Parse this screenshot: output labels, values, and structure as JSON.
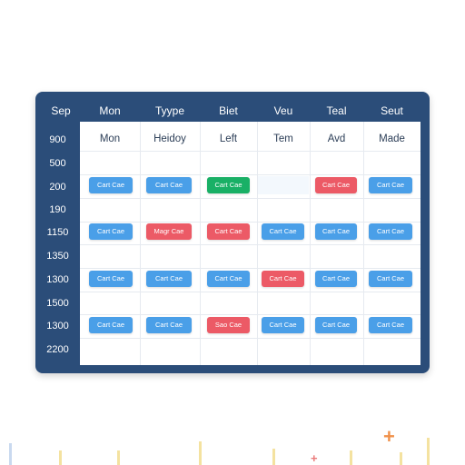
{
  "header": {
    "corner": "Sep",
    "days": [
      "Mon",
      "Tyype",
      "Biet",
      "Veu",
      "Teal",
      "Seut"
    ]
  },
  "subheader": {
    "day_names": [
      "Mon",
      "Heidoy",
      "Left",
      "Tem",
      "Avd",
      "Made"
    ]
  },
  "times": [
    "900",
    "500",
    "200",
    "190",
    "1150",
    "1350",
    "1300",
    "1500",
    "1300",
    "2200"
  ],
  "events": [
    {
      "label": "Cart Cae",
      "color": "blue"
    },
    {
      "label": "Cart Cae",
      "color": "blue"
    },
    {
      "label": "Cart Cae",
      "color": "green"
    },
    {
      "label": "Cart Cae",
      "color": "red"
    },
    {
      "label": "Cart Cae",
      "color": "blue"
    },
    {
      "label": "Cart Cae",
      "color": "blue"
    },
    {
      "label": "Magr Cae",
      "color": "red"
    },
    {
      "label": "Cart Cae",
      "color": "red"
    },
    {
      "label": "Cart Cae",
      "color": "blue"
    },
    {
      "label": "Cart Cae",
      "color": "blue"
    },
    {
      "label": "Cart Cae",
      "color": "blue"
    },
    {
      "label": "Cart Cae",
      "color": "blue"
    },
    {
      "label": "Cart Cae",
      "color": "blue"
    },
    {
      "label": "Cart Cae",
      "color": "blue"
    },
    {
      "label": "Cart Cae",
      "color": "red"
    },
    {
      "label": "Cart Cae",
      "color": "blue"
    },
    {
      "label": "Cart Cae",
      "color": "blue"
    },
    {
      "label": "Cart Cae",
      "color": "blue"
    },
    {
      "label": "Cart Cae",
      "color": "blue"
    },
    {
      "label": "Sao Cae",
      "color": "red"
    },
    {
      "label": "Cart Cae",
      "color": "blue"
    },
    {
      "label": "Cart Cae",
      "color": "blue"
    },
    {
      "label": "Cart Cae",
      "color": "blue"
    }
  ],
  "colors": {
    "frame": "#2b4d79",
    "event_blue": "#4a9fe8",
    "event_red": "#ec5a66",
    "event_green": "#19b066"
  },
  "icons": {
    "plus_large": "plus-icon",
    "plus_small": "plus-icon"
  }
}
